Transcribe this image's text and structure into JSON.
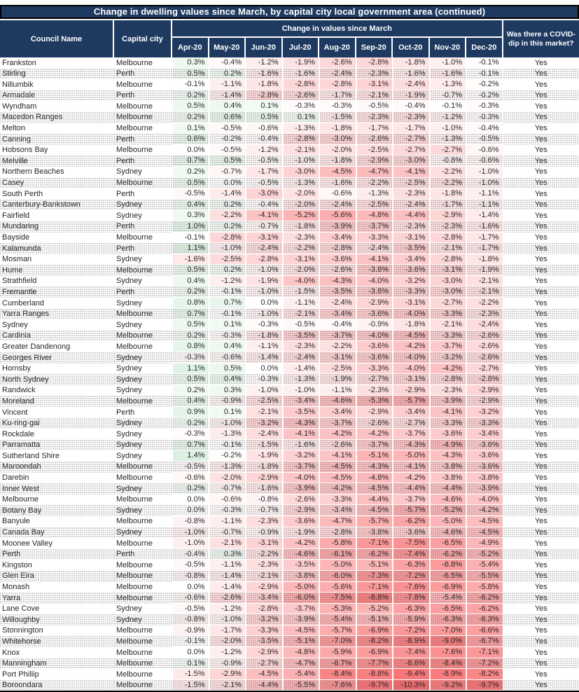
{
  "title": "Change in dwelling values since March, by capital city local government area (continued)",
  "header": {
    "council": "Council Name",
    "city": "Capital city",
    "group": "Change in values since March",
    "covid": "Was there a COVID-dip in this market?"
  },
  "colors": {
    "header_bg": "#1f3a60",
    "border_black": "#000000",
    "negative_end_red": "#f8696b",
    "positive_end_green": "#63be7b",
    "neutral_white": "#ffffff"
  },
  "chart_data": {
    "type": "table",
    "title": "Change in dwelling values since March, by capital city local government area (continued)",
    "unit": "%",
    "months": [
      "Apr-20",
      "May-20",
      "Jun-20",
      "Jul-20",
      "Aug-20",
      "Sep-20",
      "Oct-20",
      "Nov-20",
      "Dec-20"
    ],
    "color_scale": {
      "min": -10.3,
      "max": 1.4,
      "zero_color": "#ffffff",
      "min_color": "#f8696b",
      "max_side_color": "#63be7b"
    },
    "rows": [
      {
        "council": "Frankston",
        "city": "Melbourne",
        "values": [
          0.3,
          -0.4,
          -1.2,
          -1.9,
          -2.6,
          -2.8,
          -1.8,
          -1.0,
          -0.1
        ],
        "covid_dip": "Yes"
      },
      {
        "council": "Stirling",
        "city": "Perth",
        "values": [
          0.5,
          0.2,
          -1.6,
          -1.6,
          -2.4,
          -2.3,
          -1.6,
          -1.6,
          -0.1
        ],
        "covid_dip": "Yes"
      },
      {
        "council": "Nillumbik",
        "city": "Melbourne",
        "values": [
          -0.1,
          -1.1,
          -1.8,
          -2.8,
          -2.8,
          -3.1,
          -2.4,
          -1.3,
          -0.2
        ],
        "covid_dip": "Yes"
      },
      {
        "council": "Armadale",
        "city": "Perth",
        "values": [
          0.2,
          -1.4,
          -2.8,
          -2.6,
          -1.7,
          -2.1,
          -1.9,
          -0.7,
          -0.2
        ],
        "covid_dip": "Yes"
      },
      {
        "council": "Wyndham",
        "city": "Melbourne",
        "values": [
          0.5,
          0.4,
          0.1,
          -0.3,
          -0.3,
          -0.5,
          -0.4,
          -0.1,
          -0.3
        ],
        "covid_dip": "Yes"
      },
      {
        "council": "Macedon Ranges",
        "city": "Melbourne",
        "values": [
          0.2,
          0.6,
          0.5,
          0.1,
          -1.5,
          -2.3,
          -2.3,
          -1.2,
          -0.3
        ],
        "covid_dip": "Yes"
      },
      {
        "council": "Melton",
        "city": "Melbourne",
        "values": [
          0.1,
          -0.5,
          -0.6,
          -1.3,
          -1.8,
          -1.7,
          -1.7,
          -1.0,
          -0.4
        ],
        "covid_dip": "Yes"
      },
      {
        "council": "Canning",
        "city": "Perth",
        "values": [
          0.6,
          -0.2,
          -0.4,
          -2.8,
          -3.0,
          -2.6,
          -2.7,
          -1.3,
          -0.5
        ],
        "covid_dip": "Yes"
      },
      {
        "council": "Hobsons Bay",
        "city": "Melbourne",
        "values": [
          0.0,
          -0.5,
          -1.2,
          -2.1,
          -2.0,
          -2.5,
          -2.7,
          -2.7,
          -0.6
        ],
        "covid_dip": "Yes"
      },
      {
        "council": "Melville",
        "city": "Perth",
        "values": [
          0.7,
          0.5,
          -0.5,
          -1.0,
          -1.8,
          -2.9,
          -3.0,
          -0.8,
          -0.6
        ],
        "covid_dip": "Yes"
      },
      {
        "council": "Northern Beaches",
        "city": "Sydney",
        "values": [
          0.2,
          -0.7,
          -1.7,
          -3.0,
          -4.5,
          -4.7,
          -4.1,
          -2.2,
          -1.0
        ],
        "covid_dip": "Yes"
      },
      {
        "council": "Casey",
        "city": "Melbourne",
        "values": [
          0.5,
          0.0,
          -0.5,
          -1.3,
          -1.6,
          -2.2,
          -2.5,
          -2.2,
          -1.0
        ],
        "covid_dip": "Yes"
      },
      {
        "council": "South Perth",
        "city": "Perth",
        "values": [
          -0.5,
          -1.4,
          -3.0,
          -2.0,
          -0.6,
          -1.3,
          -2.3,
          -1.8,
          -1.1
        ],
        "covid_dip": "Yes"
      },
      {
        "council": "Canterbury-Bankstown",
        "city": "Sydney",
        "values": [
          0.4,
          0.2,
          -0.4,
          -2.0,
          -2.4,
          -2.5,
          -2.4,
          -1.7,
          -1.1
        ],
        "covid_dip": "Yes"
      },
      {
        "council": "Fairfield",
        "city": "Sydney",
        "values": [
          0.3,
          -2.2,
          -4.1,
          -5.2,
          -5.6,
          -4.8,
          -4.4,
          -2.9,
          -1.4
        ],
        "covid_dip": "Yes"
      },
      {
        "council": "Mundaring",
        "city": "Perth",
        "values": [
          1.0,
          0.2,
          -0.7,
          -1.8,
          -3.9,
          -3.7,
          -2.3,
          -2.3,
          -1.6
        ],
        "covid_dip": "Yes"
      },
      {
        "council": "Bayside",
        "city": "Melbourne",
        "values": [
          -0.1,
          -2.8,
          -3.1,
          -2.3,
          -3.4,
          -3.3,
          -3.1,
          -2.8,
          -1.7
        ],
        "covid_dip": "Yes"
      },
      {
        "council": "Kalamunda",
        "city": "Perth",
        "values": [
          1.1,
          -1.0,
          -2.4,
          -2.2,
          -2.8,
          -2.4,
          -3.5,
          -2.1,
          -1.7
        ],
        "covid_dip": "Yes"
      },
      {
        "council": "Mosman",
        "city": "Sydney",
        "values": [
          -1.6,
          -2.5,
          -2.8,
          -3.1,
          -3.6,
          -4.1,
          -3.4,
          -2.8,
          -1.8
        ],
        "covid_dip": "Yes"
      },
      {
        "council": "Hume",
        "city": "Melbourne",
        "values": [
          0.5,
          0.2,
          -1.0,
          -2.0,
          -2.6,
          -3.8,
          -3.6,
          -3.1,
          -1.9
        ],
        "covid_dip": "Yes"
      },
      {
        "council": "Strathfield",
        "city": "Sydney",
        "values": [
          0.4,
          -1.2,
          -1.9,
          -4.0,
          -4.3,
          -4.0,
          -3.2,
          -3.0,
          -2.1
        ],
        "covid_dip": "Yes"
      },
      {
        "council": "Fremantle",
        "city": "Perth",
        "values": [
          0.2,
          -0.1,
          -1.0,
          -1.5,
          -3.5,
          -3.8,
          -3.3,
          -3.0,
          -2.1
        ],
        "covid_dip": "Yes"
      },
      {
        "council": "Cumberland",
        "city": "Sydney",
        "values": [
          0.8,
          0.7,
          0.0,
          -1.1,
          -2.4,
          -2.9,
          -3.1,
          -2.7,
          -2.2
        ],
        "covid_dip": "Yes"
      },
      {
        "council": "Yarra Ranges",
        "city": "Melbourne",
        "values": [
          0.7,
          -0.1,
          -1.0,
          -2.1,
          -3.4,
          -3.6,
          -4.0,
          -3.3,
          -2.3
        ],
        "covid_dip": "Yes"
      },
      {
        "council": "Sydney",
        "city": "Sydney",
        "values": [
          0.5,
          0.1,
          -0.3,
          -0.5,
          -0.4,
          -0.9,
          -1.8,
          -2.1,
          -2.4
        ],
        "covid_dip": "Yes"
      },
      {
        "council": "Cardinia",
        "city": "Melbourne",
        "values": [
          0.2,
          -0.3,
          -1.8,
          -3.5,
          -3.7,
          -4.0,
          -4.5,
          -3.3,
          -2.6
        ],
        "covid_dip": "Yes"
      },
      {
        "council": "Greater Dandenong",
        "city": "Melbourne",
        "values": [
          0.8,
          0.4,
          -1.1,
          -2.3,
          -2.2,
          -3.6,
          -4.2,
          -3.7,
          -2.6
        ],
        "covid_dip": "Yes"
      },
      {
        "council": "Georges River",
        "city": "Sydney",
        "values": [
          -0.3,
          -0.6,
          -1.4,
          -2.4,
          -3.1,
          -3.6,
          -4.0,
          -3.2,
          -2.6
        ],
        "covid_dip": "Yes"
      },
      {
        "council": "Hornsby",
        "city": "Sydney",
        "values": [
          1.1,
          0.5,
          0.0,
          -1.4,
          -2.5,
          -3.3,
          -4.0,
          -4.2,
          -2.7
        ],
        "covid_dip": "Yes"
      },
      {
        "council": "North Sydney",
        "city": "Sydney",
        "values": [
          0.5,
          0.4,
          -0.3,
          -1.3,
          -1.9,
          -2.7,
          -3.1,
          -2.8,
          -2.8
        ],
        "covid_dip": "Yes"
      },
      {
        "council": "Randwick",
        "city": "Sydney",
        "values": [
          0.2,
          0.3,
          -1.0,
          -1.0,
          -1.1,
          -2.3,
          -2.9,
          -2.3,
          -2.9
        ],
        "covid_dip": "Yes"
      },
      {
        "council": "Moreland",
        "city": "Melbourne",
        "values": [
          0.4,
          -0.9,
          -2.5,
          -3.4,
          -4.6,
          -5.3,
          -5.7,
          -3.9,
          -2.9
        ],
        "covid_dip": "Yes"
      },
      {
        "council": "Vincent",
        "city": "Perth",
        "values": [
          0.9,
          0.1,
          -2.1,
          -3.5,
          -3.4,
          -2.9,
          -3.4,
          -4.1,
          -3.2
        ],
        "covid_dip": "Yes"
      },
      {
        "council": "Ku-ring-gai",
        "city": "Sydney",
        "values": [
          0.2,
          -1.0,
          -3.2,
          -4.3,
          -3.7,
          -2.6,
          -2.7,
          -3.3,
          -3.3
        ],
        "covid_dip": "Yes"
      },
      {
        "council": "Rockdale",
        "city": "Sydney",
        "values": [
          -0.3,
          -1.3,
          -2.4,
          -4.1,
          -4.2,
          -4.2,
          -3.7,
          -3.6,
          -3.4
        ],
        "covid_dip": "Yes"
      },
      {
        "council": "Parramatta",
        "city": "Sydney",
        "values": [
          0.7,
          -0.1,
          -1.5,
          -1.6,
          -2.6,
          -3.7,
          -4.3,
          -4.9,
          -3.6
        ],
        "covid_dip": "Yes"
      },
      {
        "council": "Sutherland Shire",
        "city": "Sydney",
        "values": [
          1.4,
          -0.2,
          -1.9,
          -3.2,
          -4.1,
          -5.1,
          -5.0,
          -4.3,
          -3.6
        ],
        "covid_dip": "Yes"
      },
      {
        "council": "Maroondah",
        "city": "Melbourne",
        "values": [
          -0.5,
          -1.3,
          -1.8,
          -3.7,
          -4.5,
          -4.3,
          -4.1,
          -3.8,
          -3.6
        ],
        "covid_dip": "Yes"
      },
      {
        "council": "Darebin",
        "city": "Melbourne",
        "values": [
          -0.6,
          -2.0,
          -2.9,
          -4.0,
          -4.5,
          -4.8,
          -4.2,
          -3.8,
          -3.8
        ],
        "covid_dip": "Yes"
      },
      {
        "council": "Inner West",
        "city": "Sydney",
        "values": [
          0.2,
          -0.7,
          -1.6,
          -3.9,
          -4.2,
          -4.5,
          -4.4,
          -4.4,
          -3.9
        ],
        "covid_dip": "Yes"
      },
      {
        "council": "Melbourne",
        "city": "Melbourne",
        "values": [
          0.0,
          -0.6,
          -0.8,
          -2.6,
          -3.3,
          -4.4,
          -3.7,
          -4.6,
          -4.0
        ],
        "covid_dip": "Yes"
      },
      {
        "council": "Botany Bay",
        "city": "Sydney",
        "values": [
          0.0,
          -0.3,
          -0.7,
          -2.9,
          -3.4,
          -4.5,
          -5.7,
          -5.2,
          -4.2
        ],
        "covid_dip": "Yes"
      },
      {
        "council": "Banyule",
        "city": "Melbourne",
        "values": [
          -0.8,
          -1.1,
          -2.3,
          -3.6,
          -4.7,
          -5.7,
          -6.2,
          -5.0,
          -4.5
        ],
        "covid_dip": "Yes"
      },
      {
        "council": "Canada Bay",
        "city": "Sydney",
        "values": [
          -1.0,
          -0.7,
          -0.9,
          -1.9,
          -2.8,
          -3.8,
          -3.6,
          -4.6,
          -4.5
        ],
        "covid_dip": "Yes"
      },
      {
        "council": "Moonee Valley",
        "city": "Melbourne",
        "values": [
          -1.0,
          -2.1,
          -3.1,
          -4.2,
          -5.8,
          -7.1,
          -7.5,
          -6.5,
          -4.9
        ],
        "covid_dip": "Yes"
      },
      {
        "council": "Perth",
        "city": "Perth",
        "values": [
          -0.4,
          0.3,
          -2.2,
          -4.6,
          -6.1,
          -6.2,
          -7.4,
          -6.2,
          -5.2
        ],
        "covid_dip": "Yes"
      },
      {
        "council": "Kingston",
        "city": "Melbourne",
        "values": [
          -0.5,
          -1.1,
          -2.3,
          -3.5,
          -5.0,
          -5.1,
          -6.3,
          -6.8,
          -5.4
        ],
        "covid_dip": "Yes"
      },
      {
        "council": "Glen Eira",
        "city": "Melbourne",
        "values": [
          -0.8,
          -1.4,
          -2.1,
          -3.8,
          -6.0,
          -7.3,
          -7.2,
          -6.5,
          -5.5
        ],
        "covid_dip": "Yes"
      },
      {
        "council": "Monash",
        "city": "Melbourne",
        "values": [
          0.0,
          -1.4,
          -2.9,
          -5.0,
          -5.6,
          -7.1,
          -7.6,
          -6.9,
          -5.8
        ],
        "covid_dip": "Yes"
      },
      {
        "council": "Yarra",
        "city": "Melbourne",
        "values": [
          -0.6,
          -2.6,
          -3.4,
          -6.0,
          -7.5,
          -8.8,
          -7.8,
          -5.4,
          -6.2
        ],
        "covid_dip": "Yes"
      },
      {
        "council": "Lane Cove",
        "city": "Sydney",
        "values": [
          -0.5,
          -1.2,
          -2.8,
          -3.7,
          -5.3,
          -5.2,
          -6.3,
          -6.5,
          -6.2
        ],
        "covid_dip": "Yes"
      },
      {
        "council": "Willoughby",
        "city": "Sydney",
        "values": [
          -0.8,
          -1.0,
          -3.2,
          -3.9,
          -5.4,
          -5.1,
          -5.9,
          -6.3,
          -6.3
        ],
        "covid_dip": "Yes"
      },
      {
        "council": "Stonnington",
        "city": "Melbourne",
        "values": [
          -0.9,
          -1.7,
          -3.3,
          -4.5,
          -5.7,
          -6.9,
          -7.2,
          -7.0,
          -6.6
        ],
        "covid_dip": "Yes"
      },
      {
        "council": "Whitehorse",
        "city": "Melbourne",
        "values": [
          -0.1,
          -2.0,
          -3.5,
          -5.1,
          -7.0,
          -8.2,
          -8.9,
          -9.0,
          -6.7
        ],
        "covid_dip": "Yes"
      },
      {
        "council": "Knox",
        "city": "Melbourne",
        "values": [
          0.0,
          -1.2,
          -2.9,
          -4.8,
          -5.9,
          -6.9,
          -7.4,
          -7.6,
          -7.1
        ],
        "covid_dip": "Yes"
      },
      {
        "council": "Manningham",
        "city": "Melbourne",
        "values": [
          0.1,
          -0.9,
          -2.7,
          -4.7,
          -6.7,
          -7.7,
          -8.6,
          -8.4,
          -7.2
        ],
        "covid_dip": "Yes"
      },
      {
        "council": "Port Phillip",
        "city": "Melbourne",
        "values": [
          -1.5,
          -2.9,
          -4.5,
          -5.4,
          -8.4,
          -8.8,
          -9.4,
          -8.9,
          -8.2
        ],
        "covid_dip": "Yes"
      },
      {
        "council": "Boroondara",
        "city": "Melbourne",
        "values": [
          -1.5,
          -2.1,
          -4.4,
          -5.5,
          -7.6,
          -9.7,
          -10.3,
          -9.2,
          -9.7
        ],
        "covid_dip": "Yes"
      }
    ]
  }
}
